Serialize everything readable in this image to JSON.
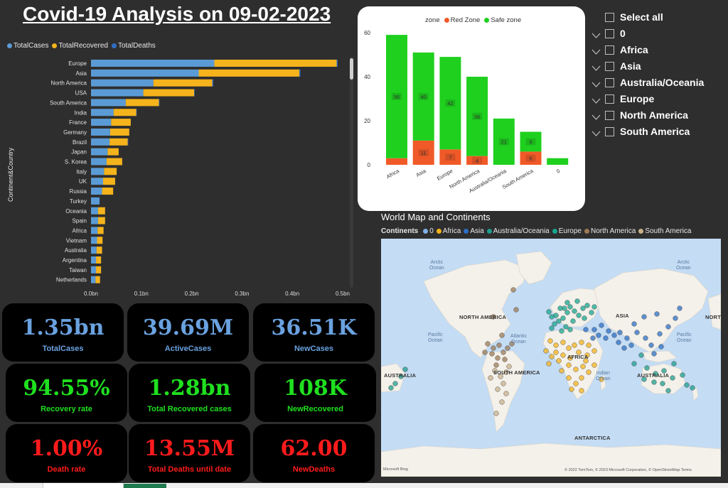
{
  "title": "Covid-19 Analysis on 09-02-2023",
  "colors": {
    "cases": "#5b9bd5",
    "recovered": "#f5b31c",
    "deaths": "#2e6fc4",
    "red_zone": "#f05a28",
    "safe_zone": "#1fd01f",
    "blue_value": "#6aa2e0",
    "green_value": "#1fe01f",
    "red_value": "#ff1b1b"
  },
  "chart_data": [
    {
      "type": "bar",
      "orientation": "horizontal",
      "stacked": true,
      "ylabel": "Continent&Country",
      "xlabel": "",
      "xlim": [
        0,
        0.5
      ],
      "x_ticks": [
        "0.0bn",
        "0.1bn",
        "0.2bn",
        "0.3bn",
        "0.4bn",
        "0.5bn"
      ],
      "legend": [
        "TotalCases",
        "TotalRecovered",
        "TotalDeaths"
      ],
      "legend_position": "top-left",
      "categories": [
        "Europe",
        "Asia",
        "North America",
        "USA",
        "South America",
        "India",
        "France",
        "Germany",
        "Brazil",
        "Japan",
        "S. Korea",
        "Italy",
        "UK",
        "Russia",
        "Turkey",
        "Oceania",
        "Spain",
        "Africa",
        "Vietnam",
        "Australia",
        "Argentina",
        "Taiwan",
        "Netherlands"
      ],
      "series": [
        {
          "name": "TotalCases",
          "values": [
            0.245,
            0.214,
            0.124,
            0.104,
            0.069,
            0.045,
            0.04,
            0.038,
            0.037,
            0.033,
            0.031,
            0.026,
            0.024,
            0.022,
            0.017,
            0.014,
            0.014,
            0.013,
            0.012,
            0.011,
            0.01,
            0.01,
            0.009
          ]
        },
        {
          "name": "TotalRecovered",
          "values": [
            0.243,
            0.2,
            0.117,
            0.101,
            0.066,
            0.045,
            0.039,
            0.038,
            0.036,
            0.022,
            0.031,
            0.025,
            0.024,
            0.022,
            0.0,
            0.014,
            0.014,
            0.012,
            0.011,
            0.011,
            0.01,
            0.01,
            0.009
          ]
        },
        {
          "name": "TotalDeaths",
          "values": [
            0.002,
            0.002,
            0.002,
            0.001,
            0.001,
            0.001,
            0.0,
            0.0,
            0.001,
            0.0,
            0.0,
            0.0,
            0.0,
            0.0,
            0.0,
            0.0,
            0.0,
            0.0,
            0.0,
            0.0,
            0.0,
            0.0,
            0.0
          ]
        }
      ]
    },
    {
      "type": "bar",
      "stacked": true,
      "legend_title": "zone",
      "legend": [
        "Red Zone",
        "Safe zone"
      ],
      "legend_position": "top",
      "ylim": [
        0,
        60
      ],
      "y_ticks": [
        "0",
        "20",
        "40",
        "60"
      ],
      "categories": [
        "Africa",
        "Asia",
        "Europe",
        "North America",
        "Australia/Oceania",
        "South America",
        "0"
      ],
      "series": [
        {
          "name": "Red Zone",
          "values": [
            3,
            11,
            7,
            4,
            0,
            6,
            0
          ],
          "labels": [
            "",
            "11",
            "7",
            "4",
            "",
            "6",
            ""
          ]
        },
        {
          "name": "Safe zone",
          "values": [
            56,
            40,
            42,
            36,
            21,
            9,
            3
          ],
          "labels": [
            "56",
            "40",
            "42",
            "36",
            "21",
            "9",
            ""
          ]
        }
      ]
    },
    {
      "type": "scatter",
      "subtype": "map",
      "title": "World Map and Continents",
      "legend_title": "Continents",
      "legend": [
        "0",
        "Africa",
        "Asia",
        "Australia/Oceania",
        "Europe",
        "North America",
        "South America"
      ],
      "legend_colors": [
        "#7fb0e6",
        "#f5b31c",
        "#2e6fc4",
        "#1e9e8e",
        "#17a58f",
        "#9c7a55",
        "#c8b08c"
      ],
      "continent_labels": [
        "NORTH AMERICA",
        "ASIA",
        "NORT",
        "AFRICA",
        "SOUTH AMERICA",
        "AUSTRALIA",
        "AUSTRALIA",
        "ANTARCTICA"
      ],
      "ocean_labels": [
        "Arctic\nOcean",
        "Arctic\nOcean",
        "Pacific\nOcean",
        "Atlantic\nOcean",
        "Pacific\nOcean",
        "Indian\nOcean"
      ],
      "attribution": "© 2022 TomTom, © 2023 Microsoft Corporation, © OpenStreetMap  Terms",
      "provider": "Microsoft Bing"
    }
  ],
  "slicer": {
    "items": [
      {
        "label": "Select all",
        "chevron": false
      },
      {
        "label": "0",
        "chevron": true
      },
      {
        "label": "Africa",
        "chevron": true
      },
      {
        "label": "Asia",
        "chevron": true
      },
      {
        "label": "Australia/Oceania",
        "chevron": true
      },
      {
        "label": "Europe",
        "chevron": true
      },
      {
        "label": "North America",
        "chevron": true
      },
      {
        "label": "South America",
        "chevron": true
      }
    ]
  },
  "kpis": [
    {
      "value": "1.35bn",
      "label": "TotalCases",
      "color": "#6aa2e0"
    },
    {
      "value": "39.69M",
      "label": "ActiveCases",
      "color": "#6aa2e0"
    },
    {
      "value": "36.51K",
      "label": "NewCases",
      "color": "#6aa2e0"
    },
    {
      "value": "94.55%",
      "label": "Recovery rate",
      "color": "#1fe01f"
    },
    {
      "value": "1.28bn",
      "label": "Total Recovered cases",
      "color": "#1fe01f"
    },
    {
      "value": "108K",
      "label": "NewRecovered",
      "color": "#1fe01f"
    },
    {
      "value": "1.00%",
      "label": "Death rate",
      "color": "#ff1b1b"
    },
    {
      "value": "13.55M",
      "label": "Total Deaths until date",
      "color": "#ff1b1b"
    },
    {
      "value": "62.00",
      "label": "NewDeaths",
      "color": "#ff1b1b"
    }
  ]
}
